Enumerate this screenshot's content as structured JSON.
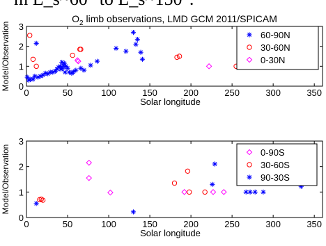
{
  "header_fragment": "m L_s~60° to L_s~150°.",
  "chart_data": [
    {
      "type": "scatter",
      "title": "O2 limb observations, LMD GCM 2011/SPICAM",
      "xlabel": "Solar longitude",
      "ylabel": "Model/Observation",
      "xlim": [
        0,
        360
      ],
      "ylim": [
        0,
        3
      ],
      "xticks": [
        0,
        50,
        100,
        150,
        200,
        250,
        300,
        350
      ],
      "yticks": [
        0,
        1,
        2,
        3
      ],
      "legend_position": "top-right",
      "series": [
        {
          "name": "60-90N",
          "marker": "star",
          "color": "#0000ff",
          "points": [
            [
              1,
              0.45
            ],
            [
              3,
              0.3
            ],
            [
              5,
              0.35
            ],
            [
              8,
              0.35
            ],
            [
              10,
              0.5
            ],
            [
              12,
              2.15
            ],
            [
              14,
              0.45
            ],
            [
              17,
              0.5
            ],
            [
              20,
              0.55
            ],
            [
              23,
              0.65
            ],
            [
              26,
              0.62
            ],
            [
              29,
              0.7
            ],
            [
              32,
              0.7
            ],
            [
              35,
              0.75
            ],
            [
              37,
              0.85
            ],
            [
              39,
              0.95
            ],
            [
              41,
              1.0
            ],
            [
              42,
              0.85
            ],
            [
              43,
              1.2
            ],
            [
              44,
              0.9
            ],
            [
              45,
              1.05
            ],
            [
              46,
              1.15
            ],
            [
              47,
              0.7
            ],
            [
              48,
              1.0
            ],
            [
              50,
              0.9
            ],
            [
              52,
              0.7
            ],
            [
              55,
              0.65
            ],
            [
              57,
              0.72
            ],
            [
              60,
              0.8
            ],
            [
              66,
              0.9
            ],
            [
              70,
              0.8
            ],
            [
              78,
              1.05
            ],
            [
              86,
              1.25
            ],
            [
              109,
              1.9
            ],
            [
              121,
              1.75
            ],
            [
              130,
              2.7
            ],
            [
              133,
              2.1
            ],
            [
              135,
              2.35
            ],
            [
              139,
              1.7
            ],
            [
              141,
              1.35
            ],
            [
              262,
              1.0
            ]
          ]
        },
        {
          "name": "30-60N",
          "marker": "circle",
          "color": "#ff0000",
          "points": [
            [
              4,
              2.55
            ],
            [
              8,
              1.35
            ],
            [
              12,
              1.0
            ],
            [
              56,
              1.55
            ],
            [
              65,
              1.85
            ],
            [
              66,
              1.85
            ],
            [
              183,
              1.45
            ],
            [
              186,
              1.5
            ],
            [
              255,
              1.0
            ],
            [
              284,
              1.0
            ]
          ]
        },
        {
          "name": "0-30N",
          "marker": "diamond",
          "color": "#ff00ff",
          "points": [
            [
              62,
              1.3
            ],
            [
              63,
              1.25
            ],
            [
              222,
              1.0
            ],
            [
              292,
              1.0
            ],
            [
              347,
              1.0
            ]
          ]
        }
      ]
    },
    {
      "type": "scatter",
      "xlabel": "Solar longitude",
      "ylabel": "Model/Observation",
      "xlim": [
        0,
        360
      ],
      "ylim": [
        0,
        3
      ],
      "xticks": [
        0,
        50,
        100,
        150,
        200,
        250,
        300,
        350
      ],
      "yticks": [
        0,
        1,
        2,
        3
      ],
      "legend_position": "top-right",
      "series": [
        {
          "name": "0-90S",
          "marker": "diamond",
          "color": "#ff00ff",
          "points": [
            [
              76,
              2.15
            ],
            [
              76,
              1.55
            ],
            [
              102,
              0.98
            ],
            [
              192,
              1.0
            ],
            [
              227,
              1.0
            ],
            [
              240,
              1.0
            ]
          ]
        },
        {
          "name": "30-60S",
          "marker": "circle",
          "color": "#ff0000",
          "points": [
            [
              16,
              0.7
            ],
            [
              18,
              0.72
            ],
            [
              20,
              0.68
            ],
            [
              180,
              1.35
            ],
            [
              196,
              1.82
            ],
            [
              198,
              1.0
            ],
            [
              217,
              1.0
            ]
          ]
        },
        {
          "name": "90-30S",
          "marker": "star",
          "color": "#0000ff",
          "points": [
            [
              12,
              0.55
            ],
            [
              130,
              0.22
            ],
            [
              226,
              1.3
            ],
            [
              229,
              2.1
            ],
            [
              267,
              1.0
            ],
            [
              272,
              1.0
            ],
            [
              278,
              1.0
            ],
            [
              288,
              1.0
            ],
            [
              334,
              1.22
            ]
          ]
        }
      ]
    }
  ]
}
